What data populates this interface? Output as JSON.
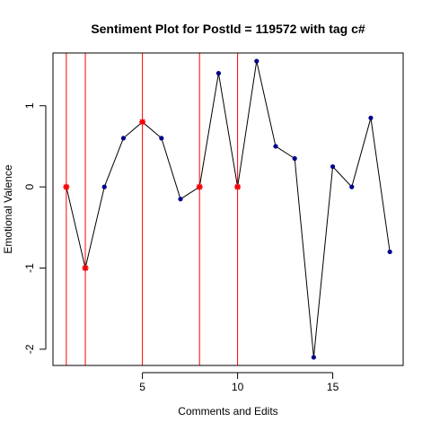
{
  "chart_data": {
    "type": "line",
    "title": "Sentiment Plot for PostId =  119572  with tag  c#",
    "xlabel": "Comments and Edits",
    "ylabel": "Emotional Valence",
    "xlim": [
      0.3,
      18.7
    ],
    "ylim": [
      -2.2,
      1.65
    ],
    "xticks": [
      5,
      10,
      15
    ],
    "yticks": [
      -2,
      -1,
      0,
      1
    ],
    "grid": false,
    "legend": "none",
    "x": [
      1,
      2,
      3,
      4,
      5,
      6,
      7,
      8,
      9,
      10,
      11,
      12,
      13,
      14,
      15,
      16,
      17,
      18
    ],
    "y": [
      0,
      -1,
      0,
      0.6,
      0.8,
      0.6,
      -0.15,
      0,
      1.4,
      0,
      1.55,
      0.5,
      0.35,
      -2.1,
      0.25,
      0,
      0.85,
      -0.8
    ],
    "highlight_x": [
      1,
      2,
      5,
      8,
      10
    ],
    "colors": {
      "line": "#000000",
      "point": "#00008B",
      "highlight": "#FF0000",
      "axis": "#000000"
    }
  }
}
